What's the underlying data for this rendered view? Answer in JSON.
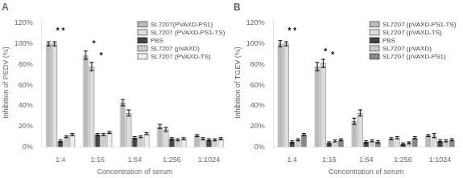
{
  "chart_data": [
    {
      "type": "bar",
      "title": "A",
      "xlabel": "Concentration of serum",
      "ylabel": "Inhibition of PEDV (%)",
      "categories": [
        "1:4",
        "1:16",
        "1:64",
        "1:256",
        "1:1024"
      ],
      "series": [
        {
          "name": "SL7207(PVAXD-PS1)",
          "color": "#bbbbbb",
          "values": [
            100,
            89,
            43,
            20,
            11
          ],
          "errors": [
            2,
            4,
            3,
            2,
            1
          ]
        },
        {
          "name": "SL7207 (PVAXD-PS1-TS)",
          "color": "#dddddd",
          "values": [
            100,
            78,
            33,
            17,
            8
          ],
          "errors": [
            2,
            4,
            3,
            2,
            1
          ]
        },
        {
          "name": "PBS",
          "color": "#444444",
          "values": [
            6,
            12,
            9,
            8,
            7
          ],
          "errors": [
            1,
            1,
            1,
            1,
            1
          ]
        },
        {
          "name": "SL7207 (pVAXD)",
          "color": "#cccccc",
          "values": [
            10,
            12,
            10,
            7,
            7
          ],
          "errors": [
            1,
            1,
            1,
            1,
            1
          ]
        },
        {
          "name": "SL7207 (PVAXD-TS)",
          "color": "#eeeeee",
          "values": [
            12,
            14,
            13,
            8,
            8
          ],
          "errors": [
            1,
            1,
            1,
            1,
            1
          ]
        }
      ],
      "ylim": [
        0,
        125
      ],
      "yticks": [
        {
          "value": 0,
          "label": "0%"
        },
        {
          "value": 20,
          "label": "20%"
        },
        {
          "value": 40,
          "label": "40%"
        },
        {
          "value": 60,
          "label": "60%"
        },
        {
          "value": 80,
          "label": "80%"
        },
        {
          "value": 100,
          "label": "100%"
        },
        {
          "value": 120,
          "label": "120%"
        }
      ],
      "grid": false,
      "legend": "upper right",
      "annotations": [
        {
          "text": "* *",
          "x": "1:4",
          "y": 108
        },
        {
          "text": "*",
          "x": "1:16",
          "y": 96
        },
        {
          "text": "*",
          "x": "1:16",
          "y": 84
        }
      ]
    },
    {
      "type": "bar",
      "title": "B",
      "xlabel": "Concentration of serum",
      "ylabel": "Inhibition of TGEV (%)",
      "categories": [
        "1:4",
        "1:16",
        "1:64",
        "1:256",
        "1:1024"
      ],
      "series": [
        {
          "name": "SL7207 (pVAXD-PS1-TS)",
          "color": "#bbbbbb",
          "values": [
            100,
            78,
            25,
            8,
            11
          ],
          "errors": [
            3,
            4,
            3,
            1,
            1
          ]
        },
        {
          "name": "SL7207 (pVAXD-TS)",
          "color": "#dddddd",
          "values": [
            100,
            81,
            33,
            9,
            11
          ],
          "errors": [
            2,
            4,
            3,
            1,
            2
          ]
        },
        {
          "name": "PBS",
          "color": "#444444",
          "values": [
            5,
            4,
            5,
            3,
            6
          ],
          "errors": [
            1,
            1,
            1,
            1,
            1
          ]
        },
        {
          "name": "SL7207 (pVAXD)",
          "color": "#cccccc",
          "values": [
            7,
            6,
            6,
            4,
            6
          ],
          "errors": [
            1,
            1,
            1,
            1,
            1
          ]
        },
        {
          "name": "SL7207 (pVAXD-PS1)",
          "color": "#888888",
          "values": [
            12,
            7,
            5,
            9,
            7
          ],
          "errors": [
            1,
            1,
            1,
            1,
            1
          ]
        }
      ],
      "ylim": [
        0,
        125
      ],
      "yticks": [
        {
          "value": 0,
          "label": "0%"
        },
        {
          "value": 20,
          "label": "20%"
        },
        {
          "value": 40,
          "label": "40%"
        },
        {
          "value": 60,
          "label": "60%"
        },
        {
          "value": 80,
          "label": "80%"
        },
        {
          "value": 100,
          "label": "100%"
        },
        {
          "value": 120,
          "label": "120%"
        }
      ],
      "grid": false,
      "legend": "upper right",
      "annotations": [
        {
          "text": "* *",
          "x": "1:4",
          "y": 108
        },
        {
          "text": "*",
          "x": "1:16",
          "y": 88
        },
        {
          "text": "*",
          "x": "1:16",
          "y": 85
        }
      ]
    }
  ]
}
